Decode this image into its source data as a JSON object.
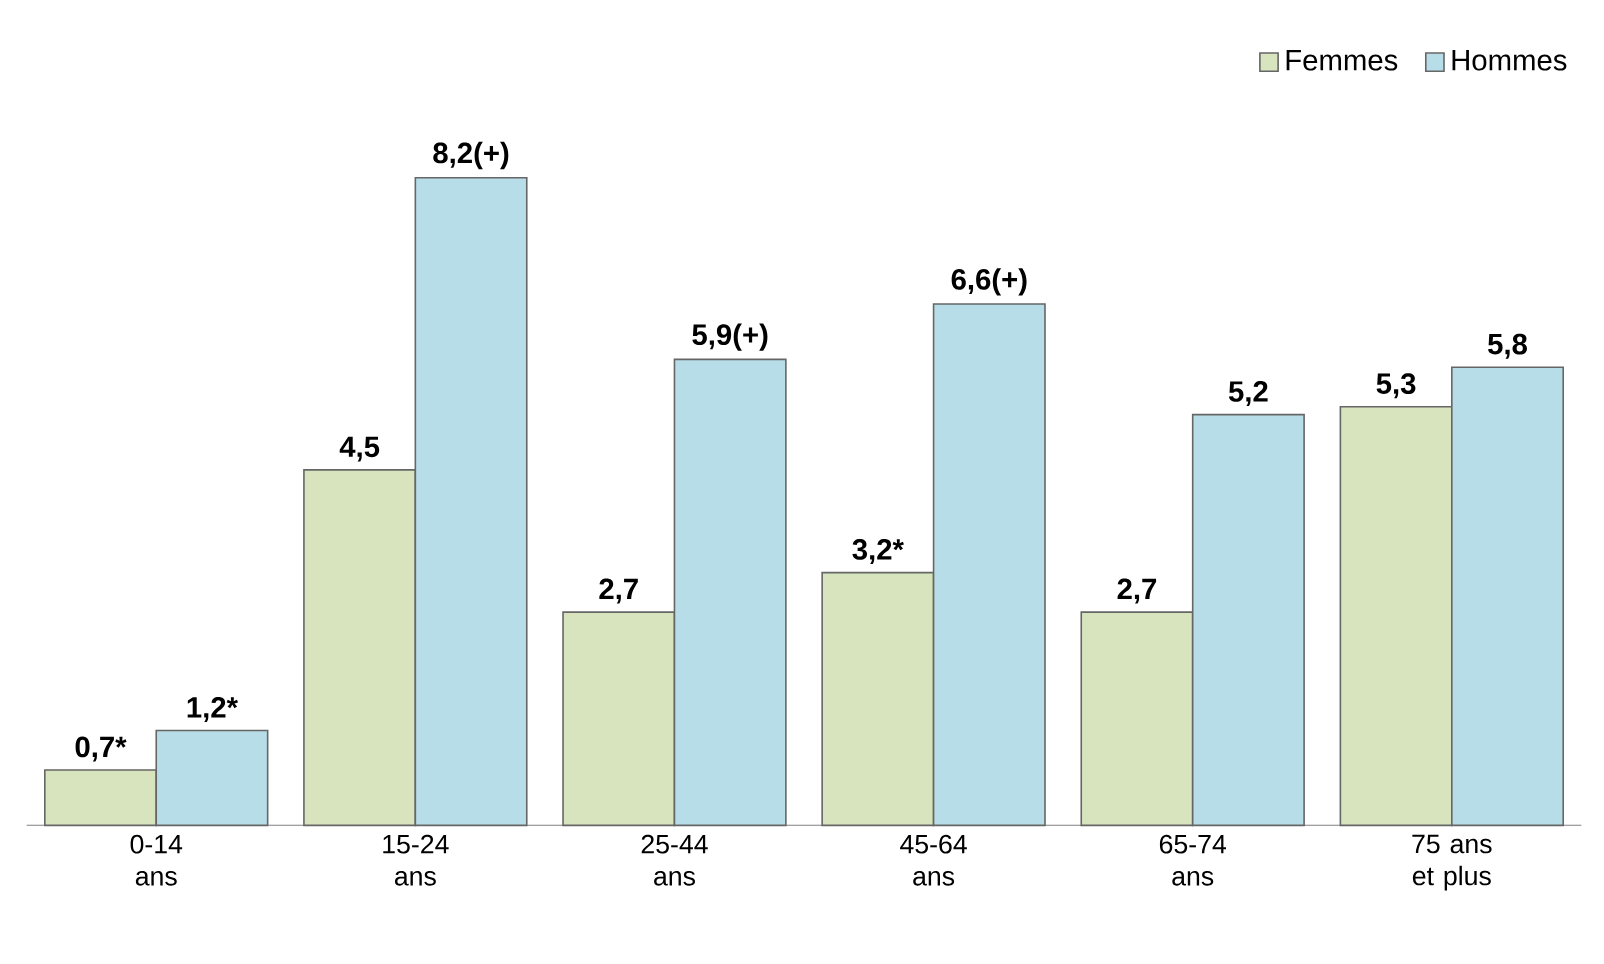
{
  "chart_data": {
    "type": "bar",
    "categories": [
      "0-14 ans",
      "15-24 ans",
      "25-44 ans",
      "45-64 ans",
      "65-74 ans",
      "75 ans et plus"
    ],
    "series": [
      {
        "name": "Femmes",
        "color": "#d7e4bd",
        "values": [
          0.7,
          4.5,
          2.7,
          3.2,
          2.7,
          5.3
        ],
        "value_labels": [
          "0,7*",
          "4,5",
          "2,7",
          "3,2*",
          "2,7",
          "5,3"
        ]
      },
      {
        "name": "Hommes",
        "color": "#b7dee8",
        "values": [
          1.2,
          8.2,
          5.9,
          6.6,
          5.2,
          5.8
        ],
        "value_labels": [
          "1,2*",
          "8,2(+)",
          "5,9(+)",
          "6,6(+)",
          "5,2",
          "5,8"
        ]
      }
    ],
    "legend": "top right"
  }
}
